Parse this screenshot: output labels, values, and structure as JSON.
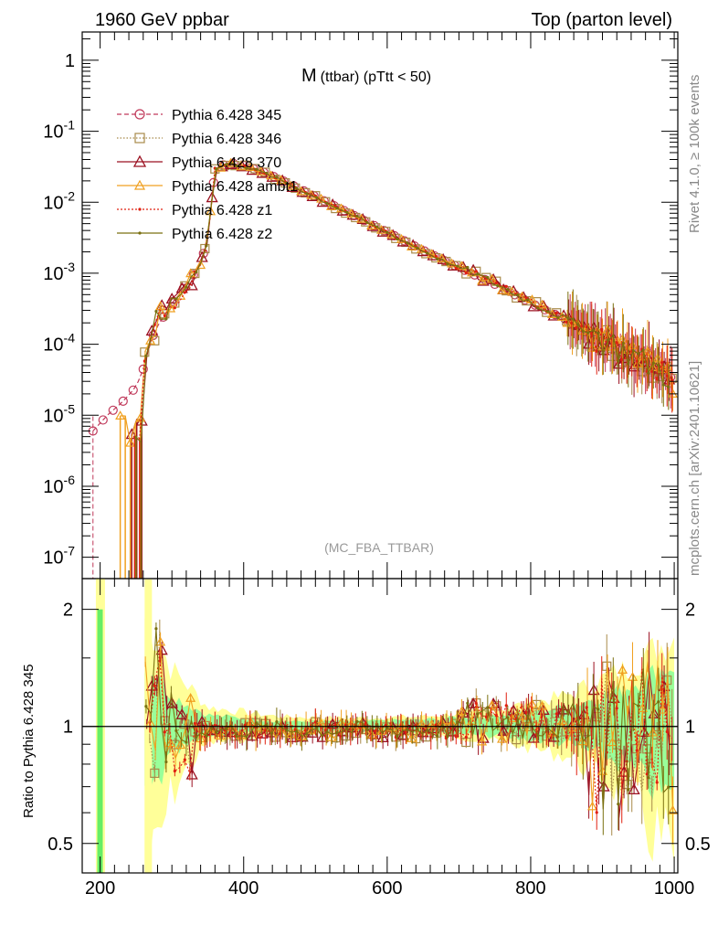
{
  "header": {
    "left_title": "1960 GeV ppbar",
    "right_title": "Top (parton level)"
  },
  "side_labels": {
    "rivet": "Rivet 4.1.0, ≥ 100k events",
    "mcplots": "mcplots.cern.ch [arXiv:2401.10621]"
  },
  "chart_data": {
    "type": "line",
    "title": "M (ttbar) (pTtt < 50)",
    "title_main": "M",
    "title_sub": "(ttbar) (pTtt < 50)",
    "watermark": "(MC_FBA_TTBAR)",
    "xlabel": "",
    "ylabel": "",
    "ratio_ylabel": "Ratio to Pythia 6.428 345",
    "xlim": [
      175,
      1005
    ],
    "ylim": [
      5e-08,
      2.5
    ],
    "ratio_ylim": [
      0.42,
      2.4
    ],
    "yscale": "log",
    "x_ticks": [
      "200",
      "400",
      "600",
      "800",
      "1000"
    ],
    "y_ticks": [
      "1",
      "10^-1",
      "10^-2",
      "10^-3",
      "10^-4",
      "10^-5",
      "10^-6",
      "10^-7"
    ],
    "ratio_ticks": [
      "0.5",
      "1",
      "2"
    ],
    "legend_position": "top-left",
    "series": [
      {
        "name": "Pythia 6.428 345",
        "color": "#c0395a",
        "marker": "circle",
        "dash": "5,3"
      },
      {
        "name": "Pythia 6.428 346",
        "color": "#a88a4a",
        "marker": "square",
        "dash": "1.5,2"
      },
      {
        "name": "Pythia 6.428 370",
        "color": "#9b1020",
        "marker": "triangle",
        "dash": ""
      },
      {
        "name": "Pythia 6.428 ambt1",
        "color": "#f0a020",
        "marker": "triangle-small",
        "dash": ""
      },
      {
        "name": "Pythia 6.428 z1",
        "color": "#e02010",
        "marker": "dot",
        "dash": "2,2"
      },
      {
        "name": "Pythia 6.428 z2",
        "color": "#7a7010",
        "marker": "dot",
        "dash": ""
      }
    ],
    "main_points": {
      "x": [
        190,
        210,
        230,
        250,
        262,
        270,
        280,
        290,
        300,
        310,
        320,
        330,
        340,
        350,
        360,
        380,
        400,
        430,
        460,
        500,
        550,
        600,
        650,
        700,
        750,
        800,
        850,
        900,
        950,
        1000
      ],
      "values": [
        6e-06,
        1e-05,
        1.5e-05,
        2.5e-05,
        5e-05,
        0.00011,
        0.00018,
        0.00026,
        0.00038,
        0.0005,
        0.0007,
        0.00095,
        0.0014,
        0.003,
        0.03,
        0.036,
        0.033,
        0.026,
        0.019,
        0.012,
        0.0068,
        0.0038,
        0.0021,
        0.0012,
        0.0007,
        0.00038,
        0.00022,
        0.00012,
        6.5e-05,
        3.2e-05
      ]
    },
    "ratio_envelopes": {
      "yellow_half_width": [
        0.9,
        0.4,
        0.12,
        0.06,
        0.05,
        0.06,
        0.1,
        0.2,
        0.4,
        0.7
      ],
      "green_half_width": [
        0.5,
        0.2,
        0.07,
        0.03,
        0.03,
        0.04,
        0.07,
        0.12,
        0.25,
        0.45
      ],
      "x": [
        262,
        300,
        350,
        450,
        550,
        650,
        750,
        850,
        930,
        1000
      ]
    }
  }
}
